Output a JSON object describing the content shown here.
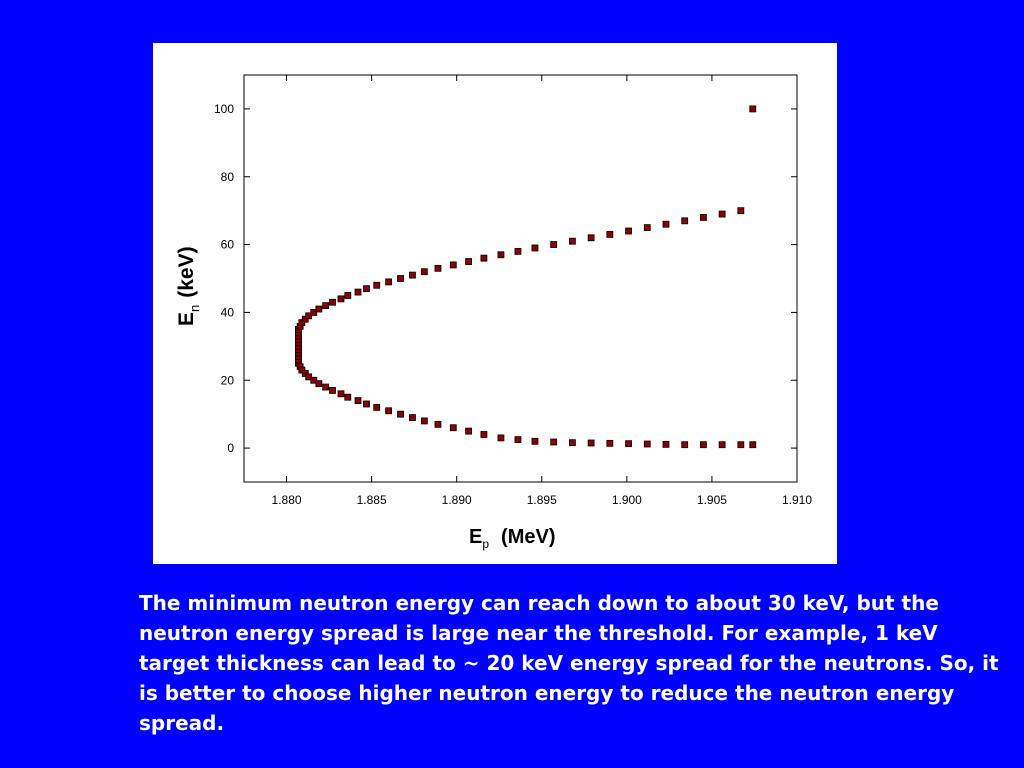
{
  "colors": {
    "background": "#0000ff",
    "panel": "#ffffff",
    "marker_fill": "#8b0000",
    "marker_edge": "#000000",
    "caption_text": "#ffffff"
  },
  "chart_data": {
    "type": "scatter",
    "title": "",
    "xlabel": "E",
    "xlabel_sub": "p",
    "xlabel_unit": "(MeV)",
    "ylabel": "E",
    "ylabel_sub": "n",
    "ylabel_unit": "(keV)",
    "xlim": [
      1.8775,
      1.91
    ],
    "ylim": [
      -10,
      110
    ],
    "xticks": [
      "1.880",
      "1.885",
      "1.890",
      "1.895",
      "1.900",
      "1.905",
      "1.910"
    ],
    "xtick_values": [
      1.88,
      1.885,
      1.89,
      1.895,
      1.9,
      1.905,
      1.91
    ],
    "yticks": [
      "0",
      "20",
      "40",
      "60",
      "80",
      "100"
    ],
    "ytick_values": [
      0,
      20,
      40,
      60,
      80,
      100
    ],
    "grid": false,
    "legend": "none",
    "series": [
      {
        "marker": "square",
        "points": [
          [
            1.8807,
            25.0
          ],
          [
            1.8807,
            26.0
          ],
          [
            1.8807,
            27.0
          ],
          [
            1.8807,
            28.0
          ],
          [
            1.8807,
            29.0
          ],
          [
            1.8807,
            30.0
          ],
          [
            1.8807,
            31.0
          ],
          [
            1.8807,
            32.0
          ],
          [
            1.8807,
            33.0
          ],
          [
            1.8807,
            34.0
          ],
          [
            1.8807,
            35.0
          ],
          [
            1.8808,
            24.0
          ],
          [
            1.8808,
            35.9
          ],
          [
            1.8809,
            23.0
          ],
          [
            1.8809,
            37.0
          ],
          [
            1.8811,
            22.0
          ],
          [
            1.8811,
            38.0
          ],
          [
            1.8813,
            21.0
          ],
          [
            1.8813,
            39.0
          ],
          [
            1.8816,
            20.0
          ],
          [
            1.8816,
            40.0
          ],
          [
            1.8819,
            19.0
          ],
          [
            1.8819,
            41.0
          ],
          [
            1.8823,
            18.0
          ],
          [
            1.8823,
            42.0
          ],
          [
            1.8827,
            17.0
          ],
          [
            1.8827,
            43.0
          ],
          [
            1.8832,
            16.0
          ],
          [
            1.8832,
            44.0
          ],
          [
            1.8836,
            15.0
          ],
          [
            1.8836,
            45.0
          ],
          [
            1.8842,
            14.0
          ],
          [
            1.8842,
            46.0
          ],
          [
            1.8847,
            13.0
          ],
          [
            1.8847,
            47.0
          ],
          [
            1.8853,
            12.0
          ],
          [
            1.8853,
            48.0
          ],
          [
            1.886,
            11.0
          ],
          [
            1.886,
            49.0
          ],
          [
            1.8867,
            10.0
          ],
          [
            1.8867,
            50.0
          ],
          [
            1.8874,
            9.0
          ],
          [
            1.8874,
            51.0
          ],
          [
            1.8881,
            8.0
          ],
          [
            1.8881,
            52.0
          ],
          [
            1.8889,
            7.0
          ],
          [
            1.8889,
            53.0
          ],
          [
            1.8898,
            6.0
          ],
          [
            1.8898,
            54.0
          ],
          [
            1.8907,
            5.0
          ],
          [
            1.8907,
            55.0
          ],
          [
            1.8916,
            4.0
          ],
          [
            1.8916,
            56.0
          ],
          [
            1.8926,
            3.0
          ],
          [
            1.8926,
            57.0
          ],
          [
            1.8936,
            2.5
          ],
          [
            1.8936,
            58.0
          ],
          [
            1.8946,
            2.0
          ],
          [
            1.8946,
            59.0
          ],
          [
            1.8957,
            1.8
          ],
          [
            1.8957,
            60.0
          ],
          [
            1.8968,
            1.6
          ],
          [
            1.8968,
            61.0
          ],
          [
            1.8979,
            1.5
          ],
          [
            1.8979,
            62.0
          ],
          [
            1.899,
            1.4
          ],
          [
            1.899,
            63.0
          ],
          [
            1.9001,
            1.3
          ],
          [
            1.9001,
            64.0
          ],
          [
            1.9012,
            1.2
          ],
          [
            1.9012,
            65.0
          ],
          [
            1.9023,
            1.1
          ],
          [
            1.9023,
            66.0
          ],
          [
            1.9034,
            1.0
          ],
          [
            1.9034,
            67.0
          ],
          [
            1.9045,
            1.0
          ],
          [
            1.9045,
            68.0
          ],
          [
            1.9056,
            1.0
          ],
          [
            1.9056,
            69.0
          ],
          [
            1.9067,
            1.0
          ],
          [
            1.9067,
            70.0
          ],
          [
            1.9074,
            1.0
          ],
          [
            1.9074,
            100.0
          ]
        ]
      }
    ]
  },
  "caption": "The minimum neutron energy can reach down to about 30 keV, but the neutron energy spread is large near the threshold. For example, 1 keV target thickness can lead to ~ 20 keV energy spread for the neutrons. So, it is better to choose higher neutron energy to reduce the neutron energy spread."
}
